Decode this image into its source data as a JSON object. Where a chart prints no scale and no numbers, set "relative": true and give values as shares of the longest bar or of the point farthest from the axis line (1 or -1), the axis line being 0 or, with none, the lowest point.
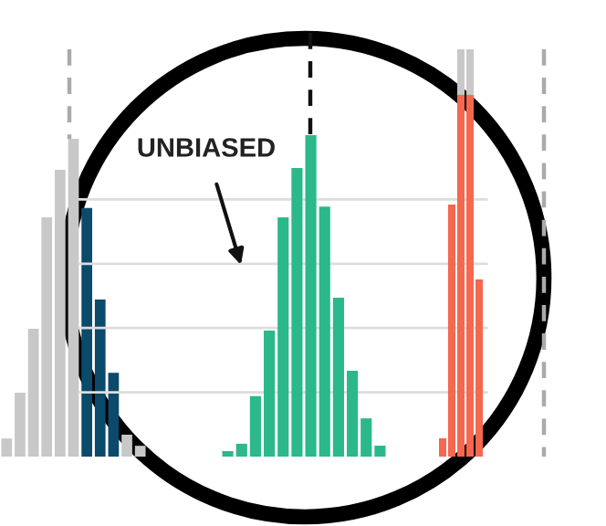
{
  "chart_data": [
    {
      "type": "bar",
      "relative": true,
      "categories": [
        null,
        null,
        null,
        null,
        null,
        null,
        null,
        null,
        null,
        null,
        null
      ],
      "series": [
        {
          "values": [
            0.057,
            0.201,
            0.402,
            0.753,
            0.902,
            1.0,
            0.782,
            0.494,
            0.264,
            0.069,
            0.034
          ],
          "colors": [
            "#c8c8c8",
            "#c8c8c8",
            "#c8c8c8",
            "#c8c8c8",
            "#c8c8c8",
            "#c8c8c8",
            "#0b4a6b",
            "#0b4a6b",
            "#0b4a6b",
            "#c8c8c8",
            "#c8c8c8"
          ]
        }
      ]
    },
    {
      "type": "bar",
      "relative": true,
      "grid": "y",
      "categories": [
        null,
        null,
        null,
        null,
        null,
        null,
        null,
        null,
        null,
        null,
        null,
        null
      ],
      "series": [
        {
          "color": "#2bb88a",
          "values": [
            0.017,
            0.04,
            0.188,
            0.392,
            0.744,
            0.898,
            1.0,
            0.778,
            0.494,
            0.267,
            0.119,
            0.034
          ]
        }
      ],
      "annotations": [
        "UNBIASED"
      ]
    },
    {
      "type": "bar",
      "relative": true,
      "stacked": true,
      "categories": [
        null,
        null,
        null,
        null,
        null
      ],
      "series": [
        {
          "color": "#f4684f",
          "values": [
            0.045,
            0.619,
            0.888,
            0.888,
            0.435
          ]
        },
        {
          "color": "#c8c8c8",
          "values": [
            0,
            0,
            0.112,
            0.112,
            0
          ]
        }
      ]
    }
  ]
}
